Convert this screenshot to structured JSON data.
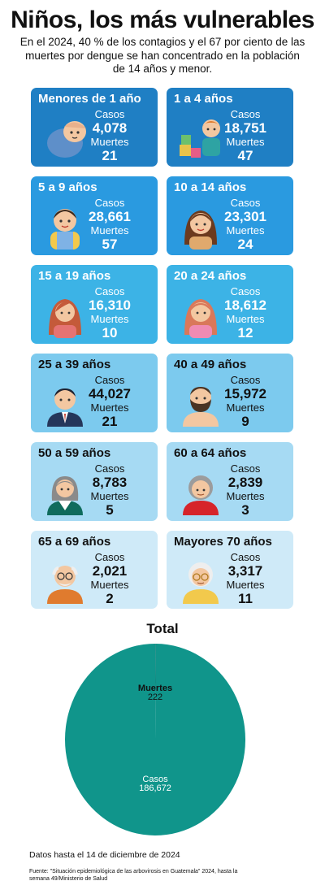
{
  "header": {
    "title": "Niños, los más vulnerables",
    "subtitle": "En el 2024, 40 % de los contagios y el 67 por ciento de las muertes por dengue se han concentrado en la población de 14 años y menor."
  },
  "labels": {
    "cases": "Casos",
    "deaths": "Muertes"
  },
  "groups": [
    {
      "name": "Menores de 1 año",
      "cases": "4,078",
      "deaths": "21",
      "color": "#1f7fc4",
      "icon": "baby-icon"
    },
    {
      "name": "1 a 4 años",
      "cases": "18,751",
      "deaths": "47",
      "color": "#1f7fc4",
      "icon": "toddler-icon"
    },
    {
      "name": "5 a 9 años",
      "cases": "28,661",
      "deaths": "57",
      "color": "#2a9ae0",
      "icon": "boy-icon"
    },
    {
      "name": "10 a 14 años",
      "cases": "23,301",
      "deaths": "24",
      "color": "#2a9ae0",
      "icon": "girl-icon"
    },
    {
      "name": "15 a 19 años",
      "cases": "16,310",
      "deaths": "10",
      "color": "#3cb3e6",
      "icon": "teen-woman-icon"
    },
    {
      "name": "20 a 24 años",
      "cases": "18,612",
      "deaths": "12",
      "color": "#3cb3e6",
      "icon": "young-woman-icon"
    },
    {
      "name": "25 a 39 años",
      "cases": "44,027",
      "deaths": "21",
      "color": "#7ccaee",
      "icon": "man-suit-icon"
    },
    {
      "name": "40 a 49 años",
      "cases": "15,972",
      "deaths": "9",
      "color": "#7ccaee",
      "icon": "bearded-man-icon"
    },
    {
      "name": "50 a 59 años",
      "cases": "8,783",
      "deaths": "5",
      "color": "#a6daf3",
      "icon": "woman-gray-hair-icon"
    },
    {
      "name": "60 a 64 años",
      "cases": "2,839",
      "deaths": "3",
      "color": "#a6daf3",
      "icon": "senior-woman-icon"
    },
    {
      "name": "65 a 69 años",
      "cases": "2,021",
      "deaths": "2",
      "color": "#cfeaf8",
      "icon": "senior-man-icon"
    },
    {
      "name": "Mayores 70 años",
      "cases": "3,317",
      "deaths": "11",
      "color": "#cfeaf8",
      "icon": "elderly-woman-icon"
    }
  ],
  "chart_data": {
    "type": "pie",
    "title": "Total",
    "categories": [
      "Muertes",
      "Casos"
    ],
    "values": [
      222,
      186672
    ],
    "value_labels": [
      "222",
      "186,672"
    ],
    "colors": [
      "#0f7f77",
      "#10958b"
    ]
  },
  "footer": {
    "date": "Datos hasta el 14 de diciembre de 2024",
    "source": "Fuente: \"Situación epidemiológica de las arbovirosis en Guatemala\" 2024, hasta la semana 49/Ministerio de Salud"
  }
}
